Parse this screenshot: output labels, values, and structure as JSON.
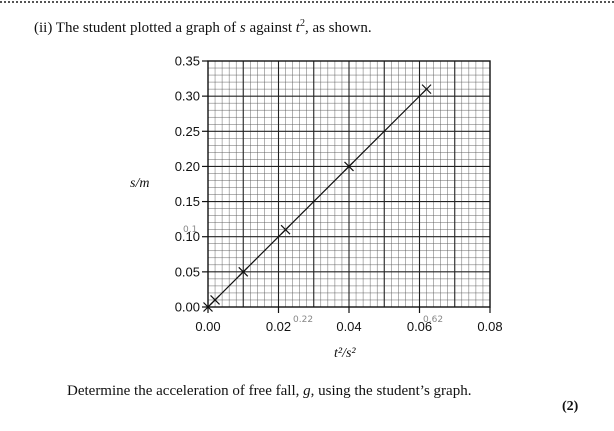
{
  "question": {
    "prefix": "(ii)  The student plotted a graph of ",
    "var_s": "s",
    "mid": " against ",
    "var_t": "t",
    "exp": "2",
    "suffix": ", as shown."
  },
  "chart_data": {
    "type": "line",
    "xlabel": "t²/s²",
    "ylabel": "s/m",
    "xlim": [
      0,
      0.08
    ],
    "ylim": [
      0,
      0.35
    ],
    "x_ticks": [
      0.0,
      0.02,
      0.04,
      0.06,
      0.08
    ],
    "y_ticks": [
      0.0,
      0.05,
      0.1,
      0.15,
      0.2,
      0.25,
      0.3,
      0.35
    ],
    "x_tick_labels": [
      "0.00",
      "0.02",
      "0.04",
      "0.06",
      "0.08"
    ],
    "y_tick_labels": [
      "0.00",
      "0.05",
      "0.10",
      "0.15",
      "0.20",
      "0.25",
      "0.30",
      "0.35"
    ],
    "grid": true,
    "marker": "x",
    "series": [
      {
        "x": [
          0.0,
          0.002,
          0.01,
          0.022,
          0.04,
          0.062
        ],
        "y": [
          0.0,
          0.01,
          0.05,
          0.11,
          0.2,
          0.31
        ]
      }
    ],
    "fit_line": {
      "x": [
        0.0,
        0.062
      ],
      "y": [
        0.0,
        0.31
      ]
    },
    "annotations": [
      "0.1",
      "0.22",
      "0.62"
    ]
  },
  "prompt": {
    "before": "Determine the acceleration of free fall, ",
    "var_g": "g",
    "after": ", using the student’s graph."
  },
  "marks": "(2)"
}
